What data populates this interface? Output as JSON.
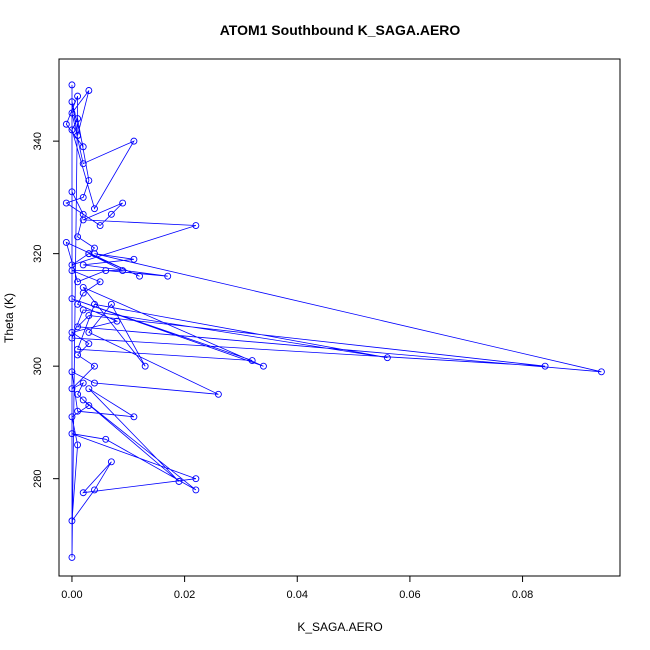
{
  "chart_data": {
    "type": "line",
    "title": "ATOM1 Southbound K_SAGA.AERO",
    "xlabel": "K_SAGA.AERO",
    "ylabel": "Theta (K)",
    "xlim": [
      -0.0023,
      0.0973
    ],
    "ylim": [
      262.7,
      354.6
    ],
    "x_ticks": [
      0,
      0.02,
      0.04,
      0.06,
      0.08
    ],
    "x_tick_labels": [
      "0.00",
      "0.02",
      "0.04",
      "0.06",
      "0.08"
    ],
    "y_ticks": [
      280,
      300,
      320,
      340
    ],
    "y_tick_labels": [
      "280",
      "300",
      "320",
      "340"
    ],
    "grid": false,
    "legend": "none",
    "color": "#0000ff",
    "marker": "open-circle",
    "series": [
      {
        "x": [
          0,
          0,
          0.001,
          -0.001,
          0.002,
          0,
          0.001,
          0.003,
          0,
          0.002,
          0.011,
          0.004,
          0,
          0.001,
          0.003,
          0.002,
          -0.001,
          0.005,
          0.007,
          0.009,
          0.002,
          0.022,
          0,
          0.003,
          0.012,
          -0.001,
          0.001,
          0.006,
          0.017,
          0.002,
          0.011,
          0.004,
          0.094,
          0.001,
          0.003,
          0.084,
          0,
          0.002,
          0.056,
          0.004,
          0.001,
          0.032,
          0,
          0.034,
          0.002,
          0.013,
          0.007,
          0.003,
          0.026,
          0.004,
          0,
          0.001,
          0.011,
          0.003,
          0.019,
          0.002,
          0.022,
          0.006,
          0,
          0.022,
          0.002,
          0.007,
          0.004,
          0,
          0.001,
          0,
          0.003,
          0.001,
          0.002,
          0,
          0.004,
          0.001,
          0.003,
          0,
          0.008,
          0.001,
          0.002,
          0.005,
          0,
          0.009,
          0.003,
          0.004,
          0.001,
          0.002,
          0
        ],
        "y": [
          350,
          266,
          348,
          343,
          339,
          347,
          341,
          349,
          345,
          336,
          340,
          328,
          342,
          344,
          333,
          330,
          329,
          325,
          327,
          329,
          326,
          325,
          318,
          320,
          316,
          322,
          315,
          317,
          316,
          318,
          319,
          320,
          299,
          307,
          309,
          300,
          305,
          310,
          301.5,
          311,
          303,
          301,
          312,
          300,
          314,
          300,
          311,
          306,
          295,
          297,
          299,
          292,
          291,
          296,
          279.5,
          294,
          278,
          287,
          288,
          280,
          277.5,
          283,
          278,
          272.5,
          286,
          291,
          293,
          295,
          297,
          296,
          300,
          302,
          304,
          306,
          308,
          311,
          313,
          315,
          317,
          317,
          320,
          321,
          323,
          327,
          331
        ]
      }
    ]
  }
}
